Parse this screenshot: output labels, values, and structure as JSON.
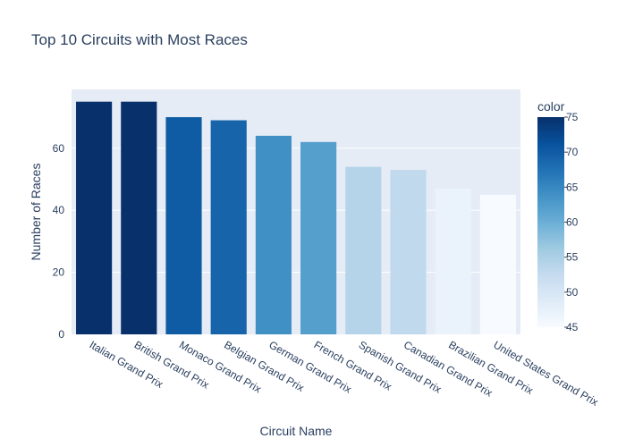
{
  "chart_data": {
    "type": "bar",
    "title": "Top 10 Circuits with Most Races",
    "xlabel": "Circuit Name",
    "ylabel": "Number of Races",
    "categories": [
      "Italian Grand Prix",
      "British Grand Prix",
      "Monaco Grand Prix",
      "Belgian Grand Prix",
      "German Grand Prix",
      "French Grand Prix",
      "Spanish Grand Prix",
      "Canadian Grand Prix",
      "Brazilian Grand Prix",
      "United States Grand Prix"
    ],
    "values": [
      75,
      75,
      70,
      69,
      64,
      62,
      54,
      53,
      47,
      45
    ],
    "ylim": [
      0,
      78.95
    ],
    "yticks": [
      "0",
      "20",
      "40",
      "60"
    ],
    "grid": true,
    "colorbar": {
      "title": "color",
      "range": [
        45,
        75
      ],
      "ticks": [
        "45",
        "50",
        "55",
        "60",
        "65",
        "70",
        "75"
      ],
      "colorscale": [
        "#f7fbff",
        "#deebf7",
        "#c6dbef",
        "#9ecae1",
        "#6baed6",
        "#4292c6",
        "#2171b5",
        "#08519c",
        "#08306b"
      ]
    },
    "plot_background": "#e5ecf6"
  }
}
